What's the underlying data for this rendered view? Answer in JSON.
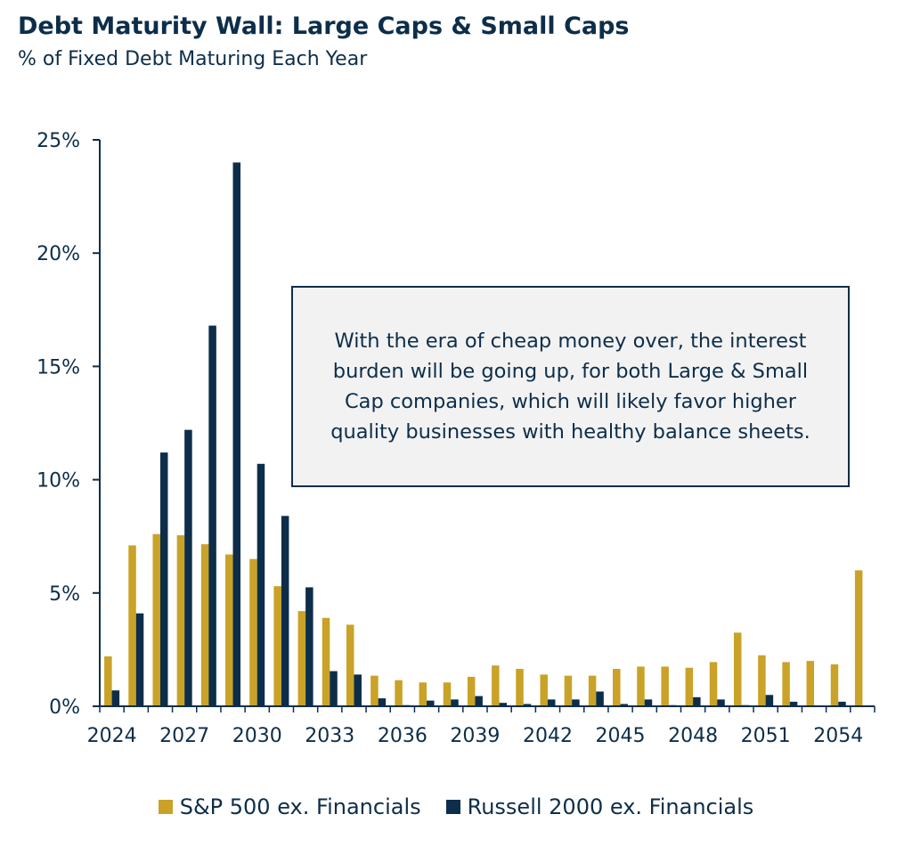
{
  "header": {
    "title": "Debt Maturity Wall: Large Caps & Small Caps",
    "subtitle": "% of Fixed Debt Maturing Each Year"
  },
  "callout": {
    "text": "With the era of cheap money over, the interest burden will be going up, for both Large & Small Cap companies, which will likely favor higher quality businesses with healthy balance sheets."
  },
  "chart_data": {
    "type": "bar",
    "title": "Debt Maturity Wall: Large Caps & Small Caps",
    "subtitle": "% of Fixed Debt Maturing Each Year",
    "xlabel": "",
    "ylabel": "",
    "ylim": [
      0,
      25
    ],
    "yticks": [
      0,
      5,
      10,
      15,
      20,
      25
    ],
    "ytick_labels": [
      "0%",
      "5%",
      "10%",
      "15%",
      "20%",
      "25%"
    ],
    "xtick_labels": [
      "2024",
      "2027",
      "2030",
      "2033",
      "2036",
      "2039",
      "2042",
      "2045",
      "2048",
      "2051",
      "2054"
    ],
    "categories": [
      "2024",
      "2025",
      "2026",
      "2027",
      "2028",
      "2029",
      "2030",
      "2031",
      "2032",
      "2033",
      "2034",
      "2035",
      "2036",
      "2037",
      "2038",
      "2039",
      "2040",
      "2041",
      "2042",
      "2043",
      "2044",
      "2045",
      "2046",
      "2047",
      "2048",
      "2049",
      "2050",
      "2051",
      "2052",
      "2053",
      "2054",
      "2055"
    ],
    "series": [
      {
        "name": "S&P 500 ex. Financials",
        "color": "#c9a227",
        "values": [
          2.2,
          7.1,
          7.6,
          7.55,
          7.15,
          6.7,
          6.5,
          5.3,
          4.2,
          3.9,
          3.6,
          1.35,
          1.15,
          1.05,
          1.05,
          1.3,
          1.8,
          1.65,
          1.4,
          1.35,
          1.35,
          1.65,
          1.75,
          1.75,
          1.7,
          1.95,
          3.25,
          2.25,
          1.95,
          2.0,
          1.85,
          6.0
        ]
      },
      {
        "name": "Russell 2000 ex. Financials",
        "color": "#0d2e4a",
        "values": [
          0.7,
          4.1,
          11.2,
          12.2,
          16.8,
          24.0,
          10.7,
          8.4,
          5.25,
          1.55,
          1.4,
          0.35,
          0.05,
          0.25,
          0.3,
          0.45,
          0.15,
          0.1,
          0.3,
          0.3,
          0.65,
          0.1,
          0.3,
          0.05,
          0.4,
          0.3,
          0.05,
          0.5,
          0.2,
          0.0,
          0.2,
          0.0
        ]
      }
    ],
    "legend": "bottom"
  }
}
